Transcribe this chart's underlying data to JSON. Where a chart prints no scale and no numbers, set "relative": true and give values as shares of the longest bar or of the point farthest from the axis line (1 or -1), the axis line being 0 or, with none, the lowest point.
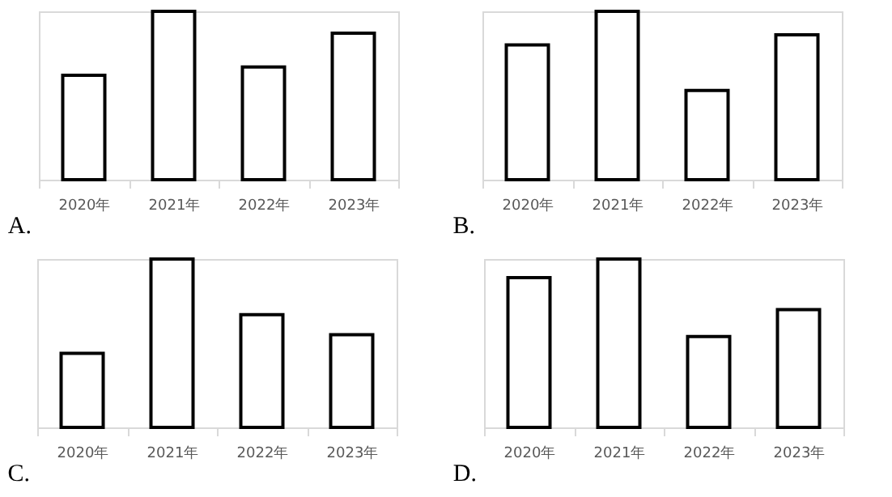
{
  "chart_data": [
    {
      "type": "bar",
      "title": "A.",
      "relative": true,
      "categories": [
        "2020年",
        "2021年",
        "2022年",
        "2023年"
      ],
      "values": [
        0.62,
        1,
        0.67,
        0.87
      ],
      "color": "#ffffff"
    },
    {
      "type": "bar",
      "title": "B.",
      "relative": true,
      "categories": [
        "2020年",
        "2021年",
        "2022年",
        "2023年"
      ],
      "values": [
        0.8,
        1,
        0.53,
        0.86
      ],
      "color": "#ffffff"
    },
    {
      "type": "bar",
      "title": "C.",
      "relative": true,
      "categories": [
        "2020年",
        "2021年",
        "2022年",
        "2023年"
      ],
      "values": [
        0.44,
        1,
        0.67,
        0.55
      ],
      "color": "#ffffff"
    },
    {
      "type": "bar",
      "title": "D.",
      "relative": true,
      "categories": [
        "2020年",
        "2021年",
        "2022年",
        "2023年"
      ],
      "values": [
        0.89,
        1,
        0.54,
        0.7
      ],
      "color": "#ffffff"
    }
  ]
}
